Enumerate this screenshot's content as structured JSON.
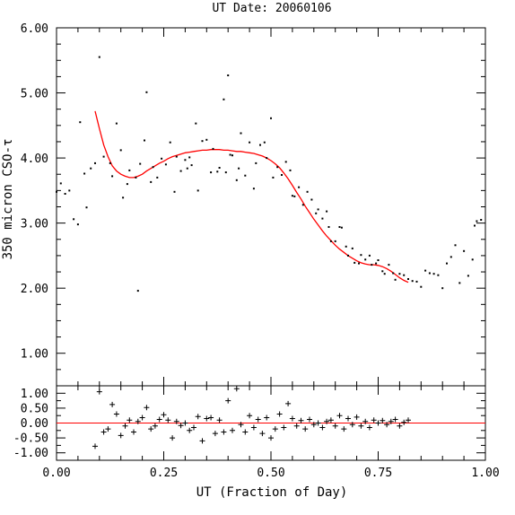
{
  "chart_data": [
    {
      "type": "scatter",
      "title": "UT Date: 20060106",
      "xlabel": "",
      "ylabel": "350 micron CSO-τ",
      "xlim": [
        0.0,
        1.0
      ],
      "ylim": [
        0.5,
        6.0
      ],
      "x_ticks": [
        "0.00",
        "0.25",
        "0.50",
        "0.75",
        "1.00"
      ],
      "y_ticks": [
        "1.00",
        "2.00",
        "3.00",
        "4.00",
        "5.00",
        "6.00"
      ],
      "grid": false,
      "colors": {
        "data": "#000000",
        "fit": "#ff0000"
      },
      "series": [
        {
          "marker": "dot",
          "x": [
            0.0,
            0.01,
            0.02,
            0.03,
            0.04,
            0.05,
            0.055,
            0.065,
            0.07,
            0.08,
            0.09,
            0.1,
            0.11,
            0.125,
            0.13,
            0.14,
            0.15,
            0.155,
            0.165,
            0.17,
            0.185,
            0.19,
            0.195,
            0.205,
            0.21,
            0.22,
            0.225,
            0.235,
            0.245,
            0.255,
            0.265,
            0.275,
            0.28,
            0.29,
            0.3,
            0.305,
            0.31,
            0.315,
            0.325,
            0.33,
            0.34,
            0.35,
            0.36,
            0.365,
            0.375,
            0.38,
            0.39,
            0.395,
            0.4,
            0.405,
            0.41,
            0.42,
            0.425,
            0.43,
            0.44,
            0.45,
            0.46,
            0.465,
            0.475,
            0.485,
            0.49,
            0.5,
            0.505,
            0.515,
            0.525,
            0.535,
            0.545,
            0.55,
            0.555,
            0.565,
            0.575,
            0.585,
            0.595,
            0.605,
            0.61,
            0.62,
            0.63,
            0.635,
            0.64,
            0.65,
            0.66,
            0.665,
            0.675,
            0.68,
            0.69,
            0.695,
            0.705,
            0.71,
            0.72,
            0.73,
            0.735,
            0.745,
            0.75,
            0.76,
            0.765,
            0.775,
            0.785,
            0.79,
            0.8,
            0.81,
            0.82,
            0.83,
            0.84,
            0.85,
            0.86,
            0.87,
            0.88,
            0.89,
            0.9,
            0.91,
            0.92,
            0.93,
            0.94,
            0.95,
            0.96,
            0.97,
            0.975,
            0.98,
            0.99
          ],
          "y": [
            3.48,
            3.61,
            3.45,
            3.5,
            3.06,
            2.98,
            4.55,
            3.76,
            3.24,
            3.84,
            3.92,
            5.55,
            4.02,
            3.92,
            3.72,
            4.53,
            4.12,
            3.39,
            3.6,
            3.81,
            3.7,
            1.96,
            3.91,
            4.27,
            5.01,
            3.63,
            3.86,
            3.7,
            3.99,
            3.9,
            4.24,
            3.48,
            4.02,
            3.8,
            3.97,
            3.84,
            4.01,
            3.89,
            4.53,
            3.5,
            4.26,
            4.28,
            3.78,
            4.14,
            3.79,
            3.85,
            4.9,
            3.78,
            5.27,
            4.05,
            4.04,
            3.66,
            3.84,
            4.38,
            3.73,
            4.24,
            3.53,
            3.92,
            4.2,
            4.24,
            4.0,
            4.61,
            3.7,
            3.86,
            3.74,
            3.94,
            3.81,
            3.42,
            3.41,
            3.55,
            3.28,
            3.48,
            3.36,
            3.15,
            3.21,
            3.07,
            3.18,
            2.94,
            2.72,
            2.72,
            2.94,
            2.93,
            2.64,
            2.5,
            2.61,
            2.39,
            2.38,
            2.51,
            2.44,
            2.5,
            2.36,
            2.38,
            2.43,
            2.26,
            2.22,
            2.36,
            2.23,
            2.13,
            2.22,
            2.2,
            2.14,
            2.11,
            2.1,
            2.02,
            2.27,
            2.23,
            2.22,
            2.2,
            2.0,
            2.38,
            2.48,
            2.66,
            2.08,
            2.57,
            2.19,
            2.44,
            2.96,
            3.03,
            3.05
          ]
        },
        {
          "marker": "line",
          "x": [
            0.09,
            0.1,
            0.11,
            0.12,
            0.13,
            0.14,
            0.15,
            0.16,
            0.17,
            0.18,
            0.19,
            0.2,
            0.21,
            0.22,
            0.23,
            0.24,
            0.25,
            0.26,
            0.27,
            0.28,
            0.29,
            0.3,
            0.31,
            0.32,
            0.33,
            0.34,
            0.35,
            0.36,
            0.37,
            0.38,
            0.39,
            0.4,
            0.41,
            0.42,
            0.43,
            0.44,
            0.45,
            0.46,
            0.47,
            0.48,
            0.49,
            0.5,
            0.51,
            0.52,
            0.53,
            0.54,
            0.55,
            0.56,
            0.57,
            0.58,
            0.59,
            0.6,
            0.61,
            0.62,
            0.63,
            0.64,
            0.65,
            0.66,
            0.67,
            0.68,
            0.69,
            0.7,
            0.71,
            0.72,
            0.73,
            0.74,
            0.75,
            0.76,
            0.77,
            0.78,
            0.79,
            0.8,
            0.81,
            0.82
          ],
          "y": [
            4.72,
            4.45,
            4.2,
            4.02,
            3.88,
            3.8,
            3.75,
            3.72,
            3.7,
            3.7,
            3.72,
            3.75,
            3.8,
            3.84,
            3.88,
            3.92,
            3.95,
            3.99,
            4.02,
            4.04,
            4.06,
            4.08,
            4.09,
            4.1,
            4.11,
            4.12,
            4.12,
            4.13,
            4.13,
            4.13,
            4.12,
            4.12,
            4.11,
            4.1,
            4.1,
            4.09,
            4.08,
            4.07,
            4.05,
            4.03,
            4.0,
            3.96,
            3.91,
            3.85,
            3.77,
            3.68,
            3.58,
            3.47,
            3.37,
            3.26,
            3.16,
            3.06,
            2.97,
            2.88,
            2.8,
            2.73,
            2.66,
            2.6,
            2.55,
            2.5,
            2.46,
            2.42,
            2.39,
            2.37,
            2.36,
            2.36,
            2.35,
            2.33,
            2.3,
            2.26,
            2.21,
            2.16,
            2.12,
            2.09
          ]
        }
      ]
    },
    {
      "type": "scatter",
      "xlabel": "UT (Fraction of Day)",
      "ylabel": "",
      "xlim": [
        0.0,
        1.0
      ],
      "ylim": [
        -1.25,
        1.25
      ],
      "x_ticks": [
        "0.00",
        "0.25",
        "0.50",
        "0.75",
        "1.00"
      ],
      "y_ticks": [
        "-1.00",
        "-0.50",
        "0.00",
        "0.50",
        "1.00"
      ],
      "grid": false,
      "colors": {
        "data": "#000000",
        "zero_line": "#ff0000"
      },
      "series": [
        {
          "marker": "plus",
          "x": [
            0.09,
            0.1,
            0.11,
            0.12,
            0.13,
            0.14,
            0.15,
            0.16,
            0.17,
            0.18,
            0.19,
            0.2,
            0.21,
            0.22,
            0.23,
            0.24,
            0.25,
            0.26,
            0.27,
            0.28,
            0.29,
            0.3,
            0.31,
            0.32,
            0.33,
            0.34,
            0.35,
            0.36,
            0.37,
            0.38,
            0.39,
            0.4,
            0.41,
            0.42,
            0.43,
            0.44,
            0.45,
            0.46,
            0.47,
            0.48,
            0.49,
            0.5,
            0.51,
            0.52,
            0.53,
            0.54,
            0.55,
            0.56,
            0.57,
            0.58,
            0.59,
            0.6,
            0.61,
            0.62,
            0.63,
            0.64,
            0.65,
            0.66,
            0.67,
            0.68,
            0.69,
            0.7,
            0.71,
            0.72,
            0.73,
            0.74,
            0.75,
            0.76,
            0.77,
            0.78,
            0.79,
            0.8,
            0.81,
            0.82
          ],
          "y": [
            -0.78,
            1.05,
            -0.3,
            -0.2,
            0.62,
            0.3,
            -0.42,
            -0.1,
            0.1,
            -0.3,
            0.05,
            0.18,
            0.52,
            -0.2,
            -0.1,
            0.12,
            0.28,
            0.1,
            -0.5,
            0.05,
            -0.08,
            0.0,
            -0.25,
            -0.15,
            0.22,
            -0.6,
            0.15,
            0.18,
            -0.35,
            0.1,
            -0.3,
            0.75,
            -0.25,
            1.15,
            -0.05,
            -0.3,
            0.25,
            -0.15,
            0.12,
            -0.35,
            0.18,
            -0.5,
            -0.2,
            0.3,
            -0.15,
            0.65,
            0.15,
            -0.1,
            0.08,
            -0.2,
            0.12,
            -0.05,
            0.0,
            -0.15,
            0.05,
            0.1,
            -0.1,
            0.25,
            -0.2,
            0.15,
            -0.05,
            0.2,
            -0.1,
            0.05,
            -0.15,
            0.1,
            0.0,
            0.08,
            -0.05,
            0.05,
            0.12,
            -0.1,
            0.02,
            0.1
          ]
        }
      ]
    }
  ]
}
